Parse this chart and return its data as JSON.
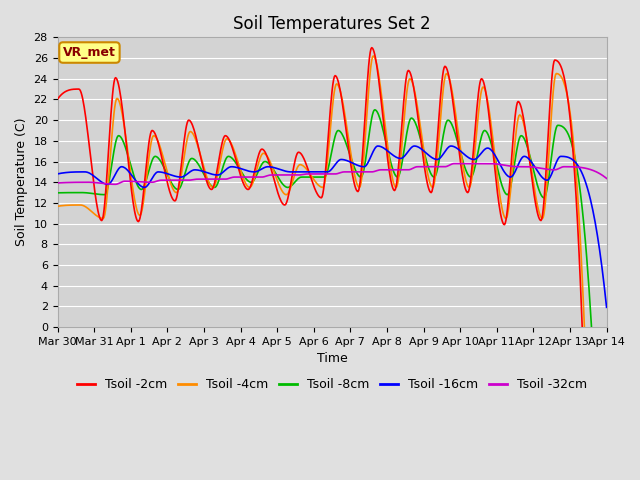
{
  "title": "Soil Temperatures Set 2",
  "xlabel": "Time",
  "ylabel": "Soil Temperature (C)",
  "ylim": [
    0,
    28
  ],
  "xlim_days": [
    0,
    15
  ],
  "yticks": [
    0,
    2,
    4,
    6,
    8,
    10,
    12,
    14,
    16,
    18,
    20,
    22,
    24,
    26,
    28
  ],
  "xtick_labels": [
    "Mar 30",
    "Mar 31",
    "Apr 1",
    "Apr 2",
    "Apr 3",
    "Apr 4",
    "Apr 5",
    "Apr 6",
    "Apr 7",
    "Apr 8",
    "Apr 9",
    "Apr 10",
    "Apr 11",
    "Apr 12",
    "Apr 13",
    "Apr 14"
  ],
  "xtick_positions": [
    0,
    1,
    2,
    3,
    4,
    5,
    6,
    7,
    8,
    9,
    10,
    11,
    12,
    13,
    14,
    15
  ],
  "vr_met_label": "VR_met",
  "legend_entries": [
    "Tsoil -2cm",
    "Tsoil -4cm",
    "Tsoil -8cm",
    "Tsoil -16cm",
    "Tsoil -32cm"
  ],
  "line_colors": [
    "#ff0000",
    "#ff8c00",
    "#00bb00",
    "#0000ff",
    "#cc00cc"
  ],
  "line_widths": [
    1.2,
    1.2,
    1.2,
    1.2,
    1.2
  ],
  "bg_color": "#e0e0e0",
  "plot_bg_color": "#d3d3d3",
  "title_fontsize": 12,
  "axis_fontsize": 9,
  "tick_fontsize": 8,
  "legend_fontsize": 9,
  "annotation_box_color": "#ffff88",
  "annotation_text_color": "#880000",
  "annotation_edge_color": "#cc8800",
  "daily_peaks_2cm": [
    23.0,
    10.3,
    24.1,
    10.2,
    19.0,
    12.2,
    20.0,
    13.3,
    18.5,
    13.3,
    17.2,
    11.8,
    16.9,
    12.5,
    24.3,
    13.1,
    27.0,
    13.2,
    24.8,
    13.0,
    25.2,
    13.0,
    24.0,
    9.9,
    21.8,
    10.3,
    25.8,
    10.0,
    13.0
  ],
  "daily_peaks_4cm": [
    11.8,
    10.5,
    22.1,
    10.8,
    18.5,
    13.0,
    18.9,
    13.5,
    18.2,
    13.5,
    16.8,
    12.8,
    15.7,
    13.5,
    23.5,
    13.5,
    26.2,
    13.5,
    24.0,
    13.5,
    24.5,
    13.5,
    23.2,
    10.5,
    20.5,
    10.5,
    24.5,
    10.5,
    13.2
  ],
  "daily_peaks_8cm": [
    13.0,
    12.8,
    18.5,
    13.3,
    16.5,
    13.3,
    16.3,
    13.5,
    16.5,
    14.0,
    16.0,
    13.5,
    14.5,
    14.5,
    19.0,
    14.5,
    21.0,
    14.5,
    20.2,
    14.5,
    20.0,
    14.5,
    19.0,
    12.8,
    18.5,
    12.5,
    19.5,
    12.8,
    15.0
  ],
  "daily_peaks_16cm": [
    15.0,
    13.8,
    15.5,
    13.5,
    15.0,
    14.5,
    15.2,
    14.7,
    15.5,
    15.0,
    15.5,
    15.0,
    15.0,
    15.0,
    16.2,
    15.5,
    17.5,
    16.3,
    17.5,
    16.2,
    17.5,
    16.2,
    17.3,
    14.5,
    16.5,
    14.2,
    16.5,
    14.5,
    15.8
  ],
  "daily_peaks_32cm": [
    14.0,
    13.8,
    14.1,
    14.0,
    14.2,
    14.2,
    14.3,
    14.3,
    14.5,
    14.5,
    14.7,
    14.7,
    14.8,
    14.8,
    15.0,
    15.0,
    15.2,
    15.2,
    15.5,
    15.5,
    15.8,
    15.8,
    15.8,
    15.5,
    15.5,
    15.2,
    15.5,
    15.2,
    15.3
  ]
}
